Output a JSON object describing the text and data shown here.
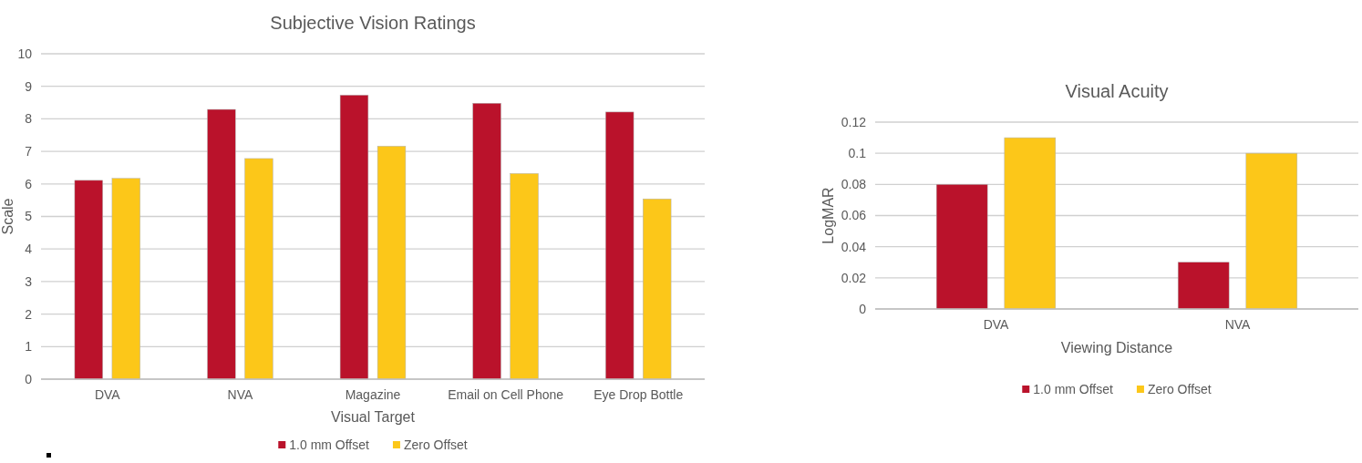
{
  "chart_data": [
    {
      "type": "bar",
      "title": "Subjective Vision Ratings",
      "xlabel": "Visual Target",
      "ylabel": "Scale",
      "categories": [
        "DVA",
        "NVA",
        "Magazine",
        "Email on Cell Phone",
        "Eye Drop Bottle"
      ],
      "series": [
        {
          "name": "1.0 mm Offset",
          "color": "#ba122b",
          "values": [
            6.11,
            8.29,
            8.73,
            8.48,
            8.21
          ]
        },
        {
          "name": "Zero Offset",
          "color": "#fcc719",
          "values": [
            6.17,
            6.78,
            7.16,
            6.32,
            5.54
          ]
        }
      ],
      "ylim": [
        0,
        10
      ],
      "yticks": [
        0,
        1,
        2,
        3,
        4,
        5,
        6,
        7,
        8,
        9,
        10
      ],
      "grid": "y",
      "legend": "bottom"
    },
    {
      "type": "bar",
      "title": "Visual Acuity",
      "xlabel": "Viewing Distance",
      "ylabel": "LogMAR",
      "categories": [
        "DVA",
        "NVA"
      ],
      "series": [
        {
          "name": "1.0 mm Offset",
          "color": "#ba122b",
          "values": [
            0.08,
            0.03
          ]
        },
        {
          "name": "Zero Offset",
          "color": "#fcc719",
          "values": [
            0.11,
            0.1
          ]
        }
      ],
      "ylim": [
        0,
        0.12
      ],
      "yticks": [
        0,
        0.02,
        0.04,
        0.06,
        0.08,
        {
          "value": 0.1,
          "label": "0.1"
        },
        0.12
      ],
      "grid": "y",
      "legend": "bottom"
    }
  ]
}
